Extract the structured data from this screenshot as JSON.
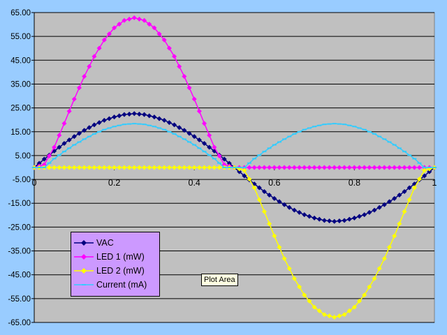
{
  "chart_data": {
    "type": "line",
    "title": "",
    "xlabel": "",
    "ylabel": "",
    "xlim": [
      0,
      1
    ],
    "ylim": [
      -65,
      65
    ],
    "x_ticks": [
      "0",
      "0.2",
      "0.4",
      "0.6",
      "0.8",
      "1"
    ],
    "y_ticks": [
      "65.00",
      "55.00",
      "45.00",
      "35.00",
      "25.00",
      "15.00",
      "5.00",
      "-5.00",
      "-15.00",
      "-25.00",
      "-35.00",
      "-45.00",
      "-55.00",
      "-65.00"
    ],
    "grid": true,
    "legend_position": "bottom-left",
    "series": [
      {
        "name": "VAC",
        "color": "#000080",
        "marker": "diamond",
        "x": [
          0,
          0.025,
          0.05,
          0.075,
          0.1,
          0.125,
          0.15,
          0.175,
          0.2,
          0.225,
          0.25,
          0.275,
          0.3,
          0.325,
          0.35,
          0.375,
          0.4,
          0.425,
          0.45,
          0.475,
          0.5,
          0.525,
          0.55,
          0.575,
          0.6,
          0.625,
          0.65,
          0.675,
          0.7,
          0.725,
          0.75,
          0.775,
          0.8,
          0.825,
          0.85,
          0.875,
          0.9,
          0.925,
          0.95,
          0.975,
          1
        ],
        "values": [
          0,
          3.5,
          6.9,
          10.1,
          13.0,
          15.6,
          17.9,
          19.8,
          21.2,
          22.2,
          22.6,
          22.2,
          21.2,
          19.8,
          17.9,
          15.6,
          13.0,
          10.1,
          6.9,
          3.5,
          0,
          -3.5,
          -6.9,
          -10.1,
          -13.0,
          -15.6,
          -17.9,
          -19.8,
          -21.2,
          -22.2,
          -22.6,
          -22.2,
          -21.2,
          -19.8,
          -17.9,
          -15.6,
          -13.0,
          -10.1,
          -6.9,
          -3.5,
          0
        ]
      },
      {
        "name": "LED 1 (mW)",
        "color": "#ff00ff",
        "marker": "diamond",
        "x": [
          0,
          0.025,
          0.05,
          0.075,
          0.1,
          0.125,
          0.15,
          0.175,
          0.2,
          0.225,
          0.25,
          0.275,
          0.3,
          0.325,
          0.35,
          0.375,
          0.4,
          0.425,
          0.45,
          0.475,
          0.5,
          0.525,
          0.55,
          0.575,
          0.6,
          0.625,
          0.65,
          0.675,
          0.7,
          0.725,
          0.75,
          0.775,
          0.8,
          0.825,
          0.85,
          0.875,
          0.9,
          0.925,
          0.95,
          0.975,
          1
        ],
        "values": [
          0,
          1.2,
          8.5,
          18.5,
          28.7,
          38.2,
          46.6,
          53.5,
          58.6,
          61.7,
          62.8,
          61.7,
          58.6,
          53.5,
          46.6,
          38.2,
          28.7,
          18.5,
          8.5,
          1.2,
          0,
          0,
          0,
          0,
          0,
          0,
          0,
          0,
          0,
          0,
          0,
          0,
          0,
          0,
          0,
          0,
          0,
          0,
          0,
          0,
          0
        ]
      },
      {
        "name": "LED 2 (mW)",
        "color": "#ffff00",
        "marker": "diamond",
        "x": [
          0,
          0.025,
          0.05,
          0.075,
          0.1,
          0.125,
          0.15,
          0.175,
          0.2,
          0.225,
          0.25,
          0.275,
          0.3,
          0.325,
          0.35,
          0.375,
          0.4,
          0.425,
          0.45,
          0.475,
          0.5,
          0.525,
          0.55,
          0.575,
          0.6,
          0.625,
          0.65,
          0.675,
          0.7,
          0.725,
          0.75,
          0.775,
          0.8,
          0.825,
          0.85,
          0.875,
          0.9,
          0.925,
          0.95,
          0.975,
          1
        ],
        "values": [
          0,
          0,
          0,
          0,
          0,
          0,
          0,
          0,
          0,
          0,
          0,
          0,
          0,
          0,
          0,
          0,
          0,
          0,
          0,
          0,
          0,
          -1.2,
          -8.5,
          -18.5,
          -28.7,
          -38.2,
          -46.6,
          -53.5,
          -58.6,
          -61.7,
          -62.8,
          -61.7,
          -58.6,
          -53.5,
          -46.6,
          -38.2,
          -28.7,
          -18.5,
          -8.5,
          -1.2,
          0
        ]
      },
      {
        "name": "Current (mA)",
        "color": "#33ccff",
        "marker": "dash",
        "x": [
          0,
          0.025,
          0.05,
          0.075,
          0.1,
          0.125,
          0.15,
          0.175,
          0.2,
          0.225,
          0.25,
          0.275,
          0.3,
          0.325,
          0.35,
          0.375,
          0.4,
          0.425,
          0.45,
          0.475,
          0.5,
          0.525,
          0.55,
          0.575,
          0.6,
          0.625,
          0.65,
          0.675,
          0.7,
          0.725,
          0.75,
          0.775,
          0.8,
          0.825,
          0.85,
          0.875,
          0.9,
          0.925,
          0.95,
          0.975,
          1
        ],
        "values": [
          0,
          0,
          3.7,
          6.7,
          9.5,
          11.9,
          14.1,
          15.9,
          17.2,
          18.1,
          18.4,
          18.1,
          17.2,
          15.9,
          14.1,
          11.9,
          9.5,
          6.7,
          3.7,
          0,
          0,
          0,
          3.7,
          6.7,
          9.5,
          11.9,
          14.1,
          15.9,
          17.2,
          18.1,
          18.4,
          18.1,
          17.2,
          15.9,
          14.1,
          11.9,
          9.5,
          6.7,
          3.7,
          0,
          0
        ]
      }
    ]
  },
  "tooltip": {
    "text": "Plot Area"
  }
}
